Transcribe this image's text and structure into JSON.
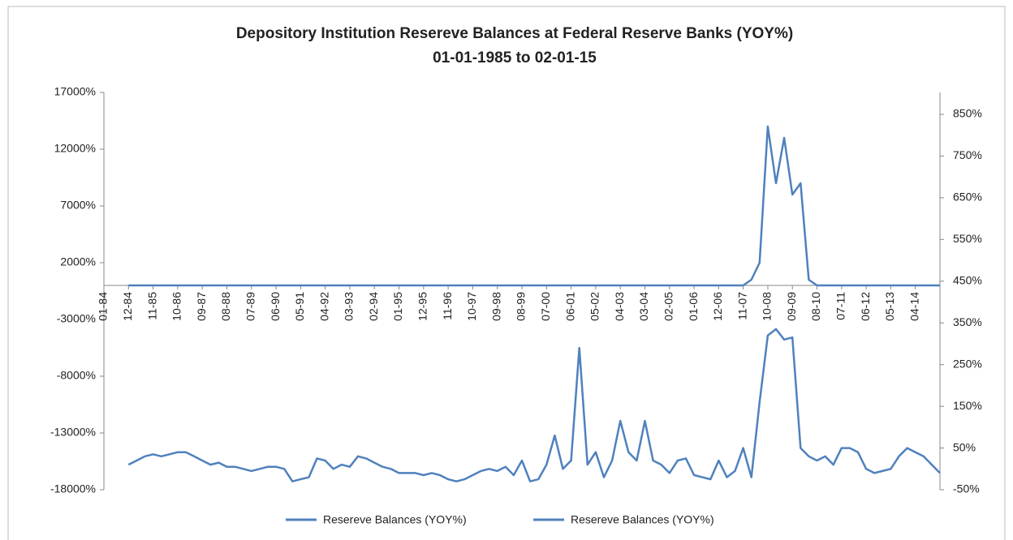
{
  "chart_data": {
    "type": "line",
    "title": "Depository Institution Resereve Balances at Federal Reserve Banks (YOY%)",
    "subtitle": "01-01-1985 to 02-01-15",
    "categories": [
      "01-84",
      null,
      null,
      "12-84",
      null,
      null,
      "11-85",
      null,
      null,
      "10-86",
      null,
      null,
      "09-87",
      null,
      null,
      "08-88",
      null,
      null,
      "07-89",
      null,
      null,
      "06-90",
      null,
      null,
      "05-91",
      null,
      null,
      "04-92",
      null,
      null,
      "03-93",
      null,
      null,
      "02-94",
      null,
      null,
      "01-95",
      null,
      null,
      "12-95",
      null,
      null,
      "11-96",
      null,
      null,
      "10-97",
      null,
      null,
      "09-98",
      null,
      null,
      "08-99",
      null,
      null,
      "07-00",
      null,
      null,
      "06-01",
      null,
      null,
      "05-02",
      null,
      null,
      "04-03",
      null,
      null,
      "03-04",
      null,
      null,
      "02-05",
      null,
      null,
      "01-06",
      null,
      null,
      "12-06",
      null,
      null,
      "11-07",
      null,
      null,
      "10-08",
      null,
      null,
      "09-09",
      null,
      null,
      "08-10",
      null,
      null,
      "07-11",
      null,
      null,
      "06-12",
      null,
      null,
      "05-13",
      null,
      null,
      "04-14",
      null,
      null,
      null
    ],
    "series": [
      {
        "name": "Resereve Balances (YOY%)",
        "color": "#4f81bd",
        "axis": "y",
        "values": [
          null,
          null,
          null,
          0,
          0,
          0,
          0,
          0,
          0,
          0,
          0,
          0,
          0,
          0,
          0,
          0,
          0,
          0,
          0,
          0,
          0,
          0,
          0,
          0,
          0,
          0,
          0,
          0,
          0,
          0,
          0,
          0,
          0,
          0,
          0,
          0,
          0,
          0,
          0,
          0,
          0,
          0,
          0,
          0,
          0,
          0,
          0,
          0,
          0,
          0,
          0,
          0,
          0,
          0,
          0,
          0,
          0,
          0,
          0,
          0,
          0,
          0,
          0,
          0,
          0,
          0,
          0,
          0,
          0,
          0,
          0,
          0,
          0,
          0,
          0,
          0,
          0,
          0,
          0,
          500,
          2000,
          14000,
          9000,
          13000,
          8000,
          9000,
          500,
          0,
          0,
          0,
          0,
          0,
          0,
          0,
          0,
          0,
          0,
          0,
          0,
          0,
          0,
          0,
          0
        ]
      },
      {
        "name": "Resereve Balances (YOY%)",
        "color": "#4f81bd",
        "axis": "y2",
        "values": [
          null,
          null,
          null,
          10,
          20,
          30,
          35,
          30,
          35,
          40,
          40,
          30,
          20,
          10,
          15,
          5,
          5,
          0,
          -5,
          0,
          5,
          5,
          0,
          -30,
          -25,
          -20,
          25,
          20,
          0,
          10,
          5,
          30,
          25,
          15,
          5,
          0,
          -10,
          -10,
          -10,
          -15,
          -10,
          -15,
          -25,
          -30,
          -25,
          -15,
          -5,
          0,
          -5,
          5,
          -15,
          20,
          -30,
          -25,
          10,
          80,
          0,
          20,
          290,
          10,
          40,
          -20,
          20,
          115,
          40,
          20,
          115,
          20,
          10,
          -10,
          20,
          25,
          -15,
          -20,
          -25,
          20,
          -20,
          -5,
          50,
          -20,
          160,
          320,
          335,
          310,
          315,
          50,
          30,
          20,
          30,
          10,
          50,
          50,
          40,
          0,
          -10,
          -5,
          0,
          30,
          50,
          40,
          30,
          10,
          -10
        ]
      }
    ],
    "ylim": [
      -18000,
      17000
    ],
    "yticks": [
      {
        "value": -18000,
        "label": "-18000%"
      },
      {
        "value": -13000,
        "label": "-13000%"
      },
      {
        "value": -8000,
        "label": "-8000%"
      },
      {
        "value": -3000,
        "label": "-3000%"
      },
      {
        "value": 2000,
        "label": "2000%"
      },
      {
        "value": 7000,
        "label": "7000%"
      },
      {
        "value": 12000,
        "label": "12000%"
      },
      {
        "value": 17000,
        "label": "17000%"
      }
    ],
    "y2lim": [
      -50,
      902.5
    ],
    "y2ticks": [
      {
        "value": -50,
        "label": "-50%"
      },
      {
        "value": 50,
        "label": "50%"
      },
      {
        "value": 150,
        "label": "150%"
      },
      {
        "value": 250,
        "label": "250%"
      },
      {
        "value": 350,
        "label": "350%"
      },
      {
        "value": 450,
        "label": "450%"
      },
      {
        "value": 550,
        "label": "550%"
      },
      {
        "value": 650,
        "label": "650%"
      },
      {
        "value": 750,
        "label": "750%"
      },
      {
        "value": 850,
        "label": "850%"
      }
    ],
    "grid": false,
    "legend": "bottom"
  }
}
